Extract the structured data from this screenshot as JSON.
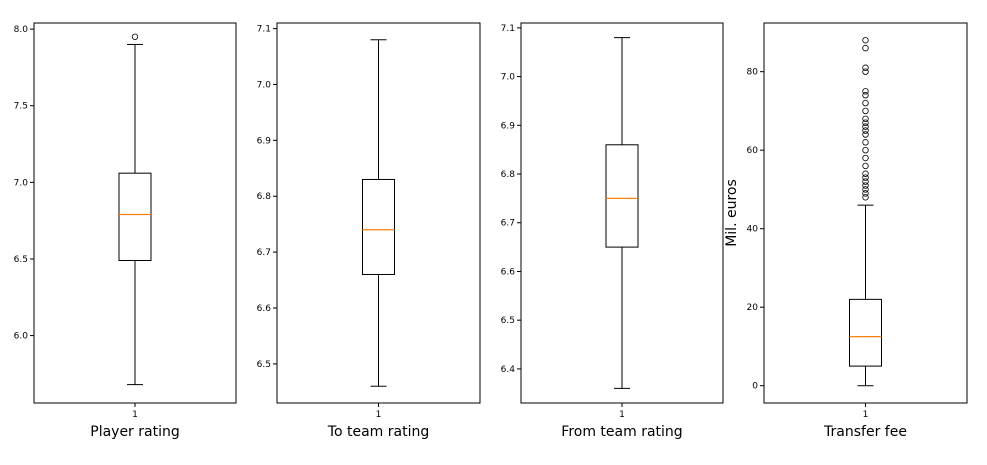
{
  "chart_data": [
    {
      "type": "box",
      "xlabel": "Player rating",
      "ylabel": "",
      "categories": [
        "1"
      ],
      "yticks": [
        "6.0",
        "6.5",
        "7.0",
        "7.5",
        "8.0"
      ],
      "ylim": [
        5.56,
        8.04
      ],
      "box": {
        "whisker_low": 5.68,
        "q1": 6.49,
        "median": 6.79,
        "q3": 7.06,
        "whisker_high": 7.9
      },
      "outliers": [
        7.95
      ]
    },
    {
      "type": "box",
      "xlabel": "To team rating",
      "ylabel": "",
      "categories": [
        "1"
      ],
      "yticks": [
        "6.5",
        "6.6",
        "6.7",
        "6.8",
        "6.9",
        "7.0",
        "7.1"
      ],
      "ylim": [
        6.43,
        7.11
      ],
      "box": {
        "whisker_low": 6.46,
        "q1": 6.66,
        "median": 6.74,
        "q3": 6.83,
        "whisker_high": 7.08
      },
      "outliers": []
    },
    {
      "type": "box",
      "xlabel": "From team rating",
      "ylabel": "",
      "categories": [
        "1"
      ],
      "yticks": [
        "6.4",
        "6.5",
        "6.6",
        "6.7",
        "6.8",
        "6.9",
        "7.0",
        "7.1"
      ],
      "ylim": [
        6.33,
        7.11
      ],
      "box": {
        "whisker_low": 6.36,
        "q1": 6.65,
        "median": 6.75,
        "q3": 6.86,
        "whisker_high": 7.08
      },
      "outliers": []
    },
    {
      "type": "box",
      "xlabel": "Transfer fee",
      "ylabel": "Mil. euros",
      "categories": [
        "1"
      ],
      "yticks": [
        "0",
        "20",
        "40",
        "60",
        "80"
      ],
      "ylim": [
        -4.4,
        92.4
      ],
      "box": {
        "whisker_low": 0,
        "q1": 5,
        "median": 12.5,
        "q3": 22,
        "whisker_high": 46
      },
      "outliers": [
        48,
        49,
        50,
        51,
        52,
        53,
        54,
        56,
        58,
        60,
        62,
        64,
        65,
        66,
        67,
        68,
        70,
        72,
        74,
        75,
        80,
        81,
        86,
        88
      ]
    }
  ]
}
